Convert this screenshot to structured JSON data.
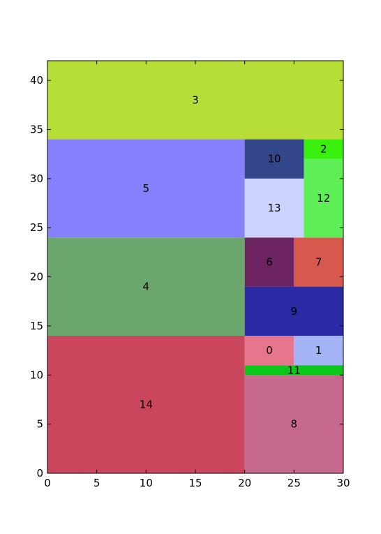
{
  "chart_data": {
    "type": "treemap",
    "xlim": [
      0,
      30
    ],
    "ylim": [
      0,
      42
    ],
    "x_ticks": [
      0,
      5,
      10,
      15,
      20,
      25,
      30
    ],
    "y_ticks": [
      0,
      5,
      10,
      15,
      20,
      25,
      30,
      35,
      40
    ],
    "grid": false,
    "rectangles": [
      {
        "label": "0",
        "x": 20,
        "y": 11,
        "w": 5,
        "h": 3,
        "color": "#e5768b"
      },
      {
        "label": "1",
        "x": 25,
        "y": 11,
        "w": 5,
        "h": 3,
        "color": "#a3b5f6"
      },
      {
        "label": "2",
        "x": 26,
        "y": 32,
        "w": 4,
        "h": 2,
        "color": "#39ef0d"
      },
      {
        "label": "3",
        "x": 0,
        "y": 34,
        "w": 30,
        "h": 8,
        "color": "#b6de36"
      },
      {
        "label": "4",
        "x": 0,
        "y": 14,
        "w": 20,
        "h": 10,
        "color": "#6ba66d"
      },
      {
        "label": "5",
        "x": 0,
        "y": 24,
        "w": 20,
        "h": 10,
        "color": "#8580fd"
      },
      {
        "label": "6",
        "x": 20,
        "y": 19,
        "w": 5,
        "h": 5,
        "color": "#6d2562"
      },
      {
        "label": "7",
        "x": 25,
        "y": 19,
        "w": 5,
        "h": 5,
        "color": "#d9584e"
      },
      {
        "label": "8",
        "x": 20,
        "y": 0,
        "w": 10,
        "h": 10,
        "color": "#c4688d"
      },
      {
        "label": "9",
        "x": 20,
        "y": 14,
        "w": 10,
        "h": 5,
        "color": "#2a2ba4"
      },
      {
        "label": "10",
        "x": 20,
        "y": 30,
        "w": 6,
        "h": 4,
        "color": "#324689"
      },
      {
        "label": "11",
        "x": 20,
        "y": 10,
        "w": 10,
        "h": 1,
        "color": "#0ac71a"
      },
      {
        "label": "12",
        "x": 26,
        "y": 24,
        "w": 4,
        "h": 8,
        "color": "#5eef57"
      },
      {
        "label": "13",
        "x": 20,
        "y": 24,
        "w": 6,
        "h": 6,
        "color": "#cbd4fe"
      },
      {
        "label": "14",
        "x": 0,
        "y": 0,
        "w": 20,
        "h": 14,
        "color": "#c9465c"
      }
    ]
  }
}
